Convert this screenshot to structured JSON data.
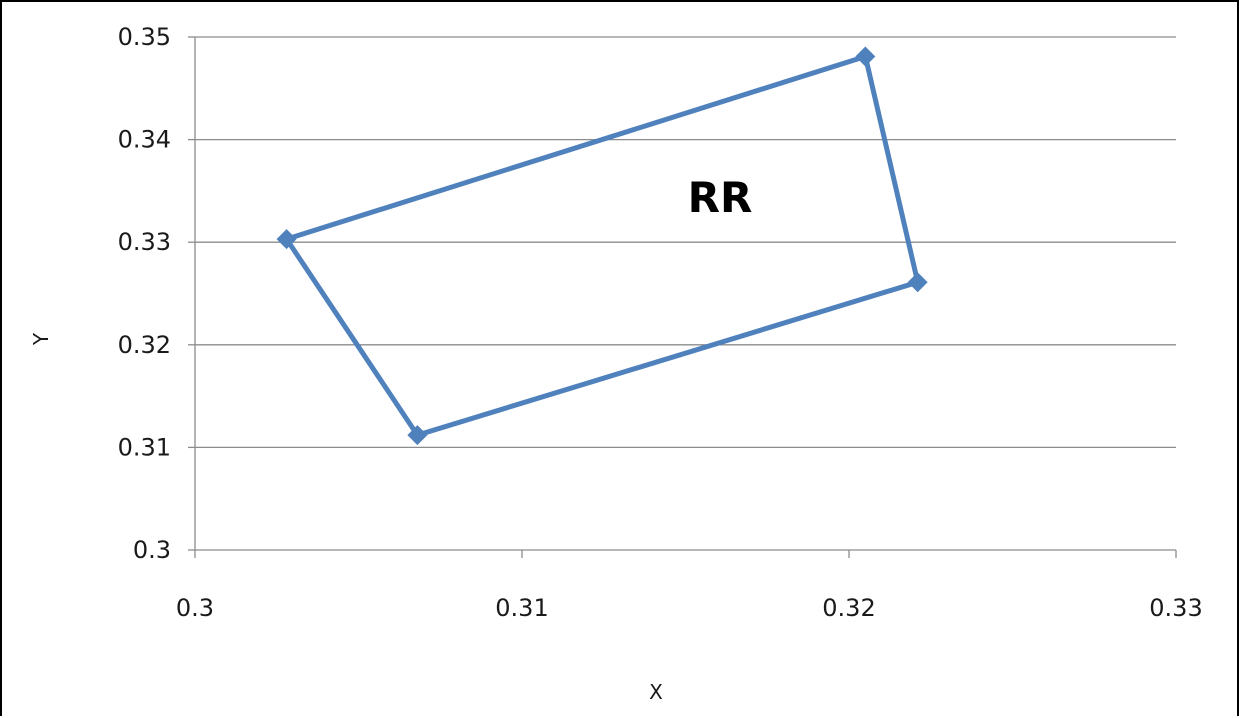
{
  "chart_data": {
    "type": "scatter",
    "title": "",
    "xlabel": "X",
    "ylabel": "Y",
    "xlim": [
      0.3,
      0.33
    ],
    "ylim": [
      0.3,
      0.35
    ],
    "x_ticks": [
      "0.3",
      "0.31",
      "0.32",
      "0.33"
    ],
    "y_ticks": [
      "0.3",
      "0.31",
      "0.32",
      "0.33",
      "0.34",
      "0.35"
    ],
    "grid": "horizontal",
    "legend": "none",
    "annotation": "RR",
    "series": [
      {
        "color": "#4f81bd",
        "marker": "diamond",
        "closed": true,
        "points": [
          {
            "x": 0.3028,
            "y": 0.3303
          },
          {
            "x": 0.3205,
            "y": 0.3481
          },
          {
            "x": 0.3221,
            "y": 0.3261
          },
          {
            "x": 0.3068,
            "y": 0.3112
          },
          {
            "x": 0.3028,
            "y": 0.3303
          }
        ]
      }
    ]
  }
}
